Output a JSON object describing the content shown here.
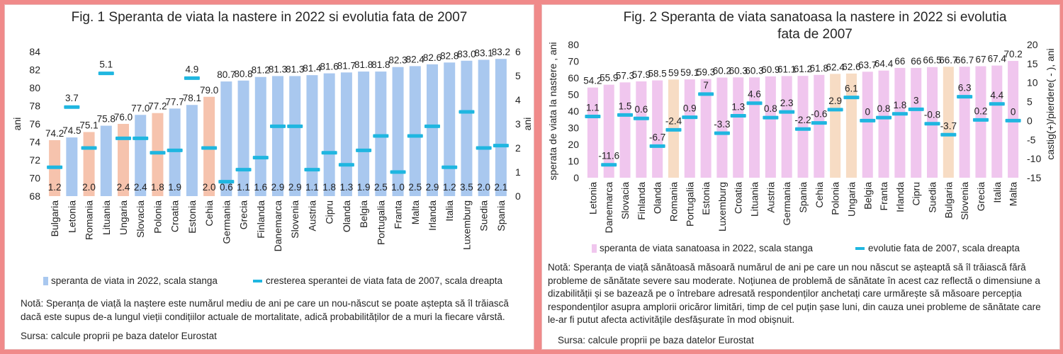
{
  "fig1": {
    "title": "Fig. 1 Speranta de viata la nastere in 2022 si   evolutia  fata de 2007",
    "ylabel_left": "ani",
    "ylabel_right": "ani",
    "legend_bar": "speranta de viata in 2022, scala stanga",
    "legend_dash": "cresterea sperantei de viata fata de 2007, scala dreapta",
    "note": "Notă: Speranța de viață la naștere este numărul mediu de ani pe care un nou-născut se poate aștepta să îl trăiască dacă este supus de-a lungul vieții condițiilor actuale de mortalitate, adică probabilităților de a muri la fiecare vârstă.",
    "source": "Sursa: calcule proprii pe baza datelor Eurostat",
    "colors": {
      "bar": "#a9c8ef",
      "highlight": "#f6c3ad",
      "dash": "#1fb6e0"
    }
  },
  "fig2": {
    "title": "Fig. 2 Speranta de viata sanatoasa  la nastere in 2022 si   evolutia  fata de 2007",
    "ylabel_left": "sperata de viata la nastere , ani",
    "ylabel_right": "castig(+)/pierdere( - ), ani",
    "legend_bar": "speranta de viata sanatoasa in 2022, scala stanga",
    "legend_dash": "evolutie fata de 2007, scala dreapta",
    "note": "Notă: Speranța de viață sănătoasă măsoară numărul de ani pe care un nou născut se așteaptă să îl trăiască fără probleme de sănătate severe sau moderate. Noțiunea de problemă de sănătate în acest caz reflectă o dimensiune a dizabilității și se bazează pe o întrebare adresată respondenților anchetați care urmărește să măsoare percepția respondenților asupra amplorii oricăror limitări, timp de cel puțin șase luni, din cauza unei probleme de sănătate care le-ar fi putut afecta activitățile desfășurate în mod obișnuit.",
    "source": "Sursa: calcule proprii pe baza datelor Eurostat",
    "colors": {
      "bar": "#f0c6ee",
      "highlight": "#f7dcc4",
      "dash": "#1fb6e0"
    }
  },
  "chart_data": [
    {
      "type": "bar",
      "title": "Fig. 1 Speranta de viata la nastere in 2022 si   evolutia  fata de 2007",
      "categories": [
        "Bulgaria",
        "Letonia",
        "Romania",
        "Lituania",
        "Ungaria",
        "Slovacia",
        "Polonia",
        "Croatia",
        "Estonia",
        "Cehia",
        "Germania",
        "Grecia",
        "Finlanda",
        "Danemarca",
        "Slovenia",
        "Austria",
        "Cipru",
        "Olanda",
        "Belgia",
        "Portugalia",
        "Franta",
        "Malta",
        "Irlanda",
        "Italia",
        "Luxemburg",
        "Suedia",
        "Spania"
      ],
      "highlight": [
        0,
        2,
        4,
        6,
        9
      ],
      "series": [
        {
          "name": "speranta de viata in 2022, scala stanga",
          "axis": "left",
          "values": [
            74.2,
            74.5,
            75.1,
            75.8,
            76.0,
            77.0,
            77.2,
            77.7,
            78.1,
            79.0,
            80.7,
            80.8,
            81.2,
            81.3,
            81.3,
            81.4,
            81.6,
            81.7,
            81.8,
            81.8,
            82.3,
            82.4,
            82.6,
            82.8,
            83.0,
            83.1,
            83.2
          ]
        },
        {
          "name": "cresterea sperantei de viata fata de 2007, scala dreapta",
          "axis": "right",
          "values": [
            1.2,
            3.7,
            2.0,
            5.1,
            2.4,
            2.4,
            1.8,
            1.9,
            4.9,
            2.0,
            0.6,
            1.1,
            1.6,
            2.9,
            2.9,
            1.1,
            1.8,
            1.3,
            1.9,
            2.5,
            1.0,
            2.5,
            2.9,
            1.2,
            3.5,
            2.0,
            2.1
          ]
        }
      ],
      "bar_labels": [
        "74.2",
        "74.5",
        "75.1",
        "75.8",
        "76.0",
        "77.0",
        "77.2",
        "77.7",
        "78.1",
        "79.0",
        "80.7",
        "80.8",
        "81.2",
        "81.3",
        "81.3",
        "81.4",
        "81.6",
        "81.7",
        "81.8",
        "81.8",
        "82.3",
        "82.4",
        "82.6",
        "82.8",
        "83.0",
        "83.1",
        "83.2"
      ],
      "dash_labels": [
        "1.2",
        "3.7",
        "2.0",
        "5.1",
        "2.4",
        "2.4",
        "1.8",
        "1.9",
        "4.9",
        "2.0",
        "0.6",
        "1.1",
        "1.6",
        "2.9",
        "2.9",
        "1.1",
        "1.8",
        "1.3",
        "1.9",
        "2.5",
        "1.0",
        "2.5",
        "2.9",
        "1.2",
        "3.5",
        "2.0",
        "2.1"
      ],
      "ylim_left": [
        68,
        84
      ],
      "yticks_left": [
        "68",
        "70",
        "72",
        "74",
        "76",
        "78",
        "80",
        "82",
        "84"
      ],
      "ylim_right": [
        0,
        6
      ],
      "yticks_right": [
        "0",
        "1",
        "2",
        "3",
        "4",
        "5",
        "6"
      ],
      "ylabel": "ani",
      "y2label": "ani",
      "grid": false,
      "legend": "bottom"
    },
    {
      "type": "bar",
      "title": "Fig. 2 Speranta de viata sanatoasa  la nastere in 2022 si   evolutia  fata de 2007",
      "categories": [
        "Letonia",
        "Danemarca",
        "Slovacia",
        "Finlanda",
        "Olanda",
        "Romania",
        "Portugalia",
        "Estonia",
        "Luxemburg",
        "Croatia",
        "Lituania",
        "Austria",
        "Germania",
        "Spania",
        "Cehia",
        "Polonia",
        "Ungaria",
        "Belgia",
        "Franta",
        "Irlanda",
        "Cipru",
        "Suedia",
        "Bulgaria",
        "Slovenia",
        "Grecia",
        "Italia",
        "Malta"
      ],
      "highlight": [
        5,
        15,
        16,
        22
      ],
      "series": [
        {
          "name": "speranta de viata sanatoasa in 2022, scala stanga",
          "axis": "left",
          "values": [
            54.2,
            55.9,
            57.3,
            57.9,
            58.5,
            59,
            59.1,
            59.3,
            60.2,
            60.3,
            60.3,
            60.9,
            61.1,
            61.2,
            61.8,
            62.4,
            62.6,
            63.7,
            64.4,
            66,
            66,
            66.5,
            66.7,
            66.7,
            67,
            67.4,
            70.2
          ]
        },
        {
          "name": "evolutie fata de 2007, scala dreapta",
          "axis": "right",
          "values": [
            1.1,
            -11.6,
            1.5,
            0.6,
            -6.7,
            -2.4,
            0.9,
            7,
            -3.3,
            1.3,
            4.6,
            0.8,
            2.3,
            -2.2,
            -0.6,
            2.9,
            6.1,
            0,
            0.8,
            1.8,
            3,
            -0.8,
            -3.7,
            6.3,
            0.2,
            4.4,
            0
          ]
        }
      ],
      "bar_labels": [
        "54.2",
        "55.9",
        "57.3",
        "57.9",
        "58.5",
        "59",
        "59.1",
        "59.3",
        "60.2",
        "60.3",
        "60.3",
        "60.9",
        "61.1",
        "61.2",
        "61.8",
        "62.4",
        "62.6",
        "63.7",
        "64.4",
        "66",
        "66",
        "66.5",
        "66.7",
        "66.7",
        "67",
        "67.4",
        "70.2"
      ],
      "dash_labels": [
        "1.1",
        "-11.6",
        "1.5",
        "0.6",
        "-6.7",
        "-2.4",
        "0.9",
        "7",
        "-3.3",
        "1.3",
        "4.6",
        "0.8",
        "2.3",
        "-2.2",
        "-0.6",
        "2.9",
        "6.1",
        "0",
        "0.8",
        "1.8",
        "3",
        "-0.8",
        "-3.7",
        "6.3",
        "0.2",
        "4.4",
        "0"
      ],
      "ylim_left": [
        0,
        80
      ],
      "yticks_left": [
        "0",
        "10",
        "20",
        "30",
        "40",
        "50",
        "60",
        "70",
        "80"
      ],
      "ylim_right": [
        -15,
        20
      ],
      "yticks_right": [
        "-15",
        "-10",
        "-5",
        "0",
        "5",
        "10",
        "15",
        "20"
      ],
      "ylabel": "sperata de viata la nastere , ani",
      "y2label": "castig(+)/pierdere( - ), ani",
      "grid": false,
      "legend": "bottom"
    }
  ]
}
